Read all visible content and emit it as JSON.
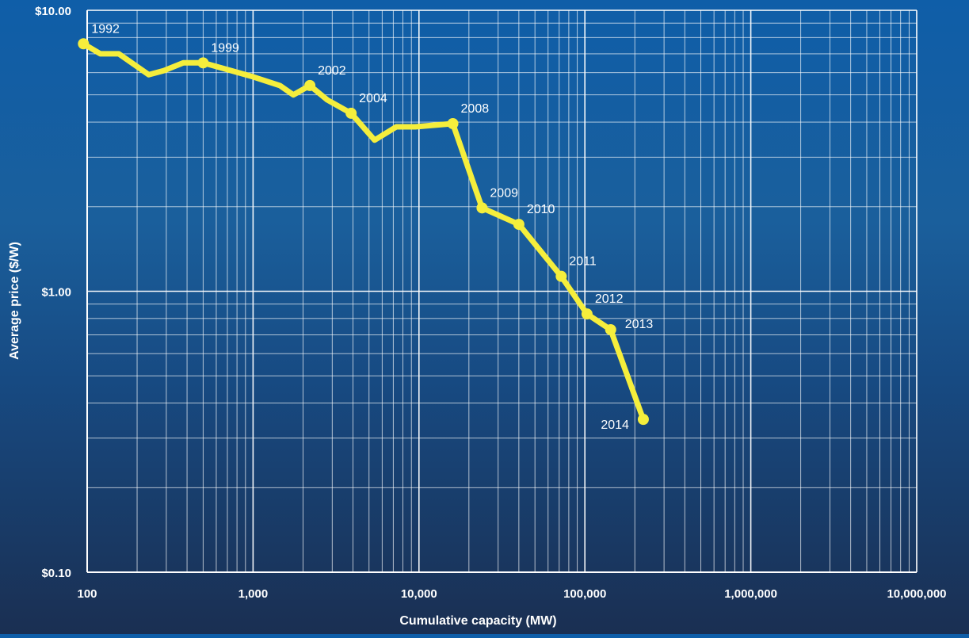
{
  "chart_data": {
    "type": "line",
    "title": "",
    "xlabel": "Cumulative capacity (MW)",
    "ylabel": "Average price ($/W)",
    "x_scale": "log",
    "y_scale": "log",
    "xlim": [
      100,
      10000000
    ],
    "ylim": [
      0.1,
      10
    ],
    "grid": true,
    "x_tick_values": [
      100,
      1000,
      10000,
      100000,
      1000000,
      10000000
    ],
    "x_tick_labels": [
      "100",
      "1,000",
      "10,000",
      "100,000",
      "1,000,000",
      "10,000,000"
    ],
    "y_tick_values": [
      10,
      1,
      0.1
    ],
    "y_tick_labels": [
      "$10.00",
      "$1.00",
      "$0.10"
    ],
    "series": [
      {
        "color": "#f5ee3c",
        "points": [
          {
            "x": 95,
            "y": 7.6
          },
          {
            "x": 120,
            "y": 7.0
          },
          {
            "x": 155,
            "y": 7.0
          },
          {
            "x": 235,
            "y": 5.9
          },
          {
            "x": 290,
            "y": 6.1
          },
          {
            "x": 380,
            "y": 6.5
          },
          {
            "x": 500,
            "y": 6.5
          },
          {
            "x": 1000,
            "y": 5.8
          },
          {
            "x": 1450,
            "y": 5.4
          },
          {
            "x": 1750,
            "y": 5.0
          },
          {
            "x": 2200,
            "y": 5.4
          },
          {
            "x": 2800,
            "y": 4.8
          },
          {
            "x": 3900,
            "y": 4.3
          },
          {
            "x": 5400,
            "y": 3.45
          },
          {
            "x": 7300,
            "y": 3.85
          },
          {
            "x": 9500,
            "y": 3.85
          },
          {
            "x": 16000,
            "y": 3.95
          },
          {
            "x": 24000,
            "y": 1.98
          },
          {
            "x": 40000,
            "y": 1.73
          },
          {
            "x": 72000,
            "y": 1.13
          },
          {
            "x": 103000,
            "y": 0.83
          },
          {
            "x": 143000,
            "y": 0.73
          },
          {
            "x": 225000,
            "y": 0.35
          }
        ]
      }
    ],
    "markers": [
      {
        "label": "1992",
        "x": 95,
        "y": 7.6,
        "label_pos": "above-right"
      },
      {
        "label": "1999",
        "x": 500,
        "y": 6.5,
        "label_pos": "above-right"
      },
      {
        "label": "2002",
        "x": 2200,
        "y": 5.4,
        "label_pos": "above-right"
      },
      {
        "label": "2004",
        "x": 3900,
        "y": 4.3,
        "label_pos": "above-right"
      },
      {
        "label": "2008",
        "x": 16000,
        "y": 3.95,
        "label_pos": "above-right"
      },
      {
        "label": "2009",
        "x": 24000,
        "y": 1.98,
        "label_pos": "above-right"
      },
      {
        "label": "2010",
        "x": 40000,
        "y": 1.73,
        "label_pos": "above-right"
      },
      {
        "label": "2011",
        "x": 72000,
        "y": 1.13,
        "label_pos": "above-right"
      },
      {
        "label": "2012",
        "x": 103000,
        "y": 0.83,
        "label_pos": "above-right"
      },
      {
        "label": "2013",
        "x": 143000,
        "y": 0.73,
        "label_pos": "right"
      },
      {
        "label": "2014",
        "x": 225000,
        "y": 0.35,
        "label_pos": "left"
      }
    ],
    "colors": {
      "line": "#f5ee3c",
      "grid": "#ffffff",
      "text": "#ffffff"
    }
  }
}
